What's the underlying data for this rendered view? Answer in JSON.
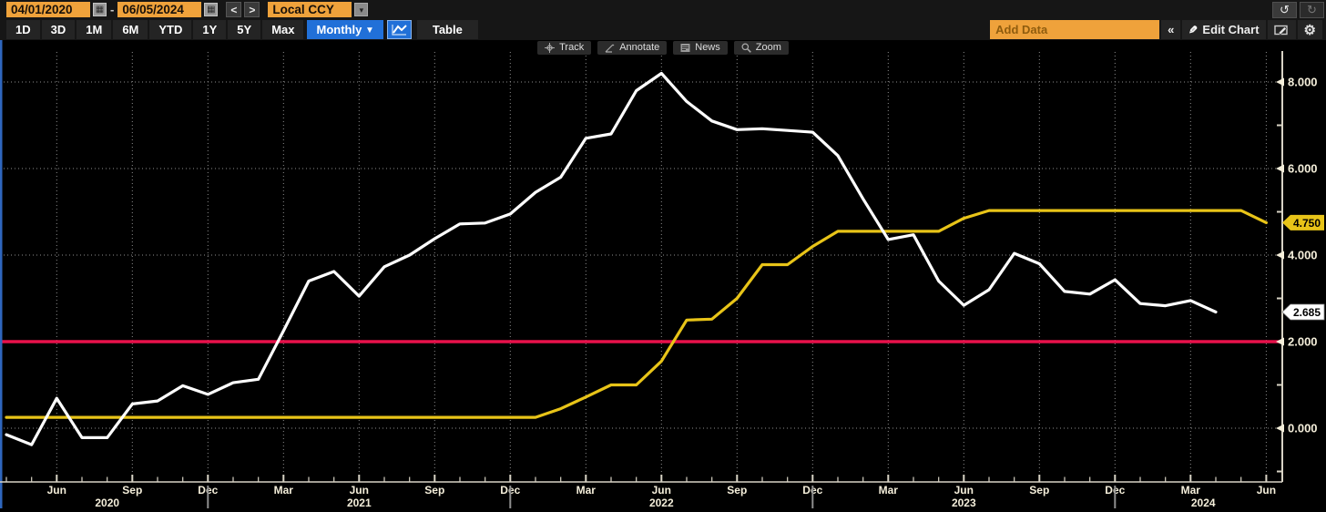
{
  "toolbar_row1": {
    "date_start": "04/01/2020",
    "date_separator": "-",
    "date_end": "06/05/2024",
    "calendar_icon": "▦",
    "prev_label": "<",
    "next_label": ">",
    "currency": "Local CCY",
    "dropdown_arrow": "▾",
    "undo_icon": "↺",
    "redo_icon": "↻"
  },
  "toolbar_row2": {
    "periods": [
      "1D",
      "3D",
      "1M",
      "6M",
      "YTD",
      "1Y",
      "5Y",
      "Max"
    ],
    "frequency_label": "Monthly",
    "frequency_arrow": "▼",
    "table_label": "Table",
    "add_data_placeholder": "Add Data",
    "collapse_icon": "«",
    "pencil_icon": "✎",
    "edit_chart_label": "Edit Chart",
    "gear_icon": "⚙",
    "selected_color": "#2170d8",
    "amber_color": "#efa23b"
  },
  "chart_toolbar": {
    "track_label": "Track",
    "annotate_label": "Annotate",
    "news_label": "News",
    "zoom_label": "Zoom"
  },
  "chart_data": {
    "type": "line",
    "frequency": "monthly",
    "months": [
      "Apr-20",
      "May-20",
      "Jun-20",
      "Jul-20",
      "Aug-20",
      "Sep-20",
      "Oct-20",
      "Nov-20",
      "Dec-20",
      "Jan-21",
      "Feb-21",
      "Mar-21",
      "Apr-21",
      "May-21",
      "Jun-21",
      "Jul-21",
      "Aug-21",
      "Sep-21",
      "Oct-21",
      "Nov-21",
      "Dec-21",
      "Jan-22",
      "Feb-22",
      "Mar-22",
      "Apr-22",
      "May-22",
      "Jun-22",
      "Jul-22",
      "Aug-22",
      "Sep-22",
      "Oct-22",
      "Nov-22",
      "Dec-22",
      "Jan-23",
      "Feb-23",
      "Mar-23",
      "Apr-23",
      "May-23",
      "Jun-23",
      "Jul-23",
      "Aug-23",
      "Sep-23",
      "Oct-23",
      "Nov-23",
      "Dec-23",
      "Jan-24",
      "Feb-24",
      "Mar-24",
      "Apr-24",
      "May-24",
      "Jun-24"
    ],
    "series": [
      {
        "name": "white-line",
        "color": "#ffffff",
        "last_value_label": "2.685",
        "values": [
          -0.15,
          -0.38,
          0.69,
          -0.22,
          -0.22,
          0.56,
          0.63,
          0.98,
          0.78,
          1.05,
          1.13,
          2.25,
          3.4,
          3.62,
          3.05,
          3.73,
          4.0,
          4.38,
          4.72,
          4.74,
          4.95,
          5.45,
          5.8,
          6.7,
          6.8,
          7.8,
          8.2,
          7.55,
          7.1,
          6.9,
          6.92,
          6.88,
          6.84,
          6.3,
          5.3,
          4.36,
          4.47,
          3.4,
          2.84,
          3.2,
          4.04,
          3.8,
          3.16,
          3.1,
          3.43,
          2.88,
          2.83,
          2.95,
          2.685,
          null,
          null
        ]
      },
      {
        "name": "yellow-line",
        "color": "#e8c418",
        "last_value_label": "4.750",
        "values": [
          0.25,
          0.25,
          0.25,
          0.25,
          0.25,
          0.25,
          0.25,
          0.25,
          0.25,
          0.25,
          0.25,
          0.25,
          0.25,
          0.25,
          0.25,
          0.25,
          0.25,
          0.25,
          0.25,
          0.25,
          0.25,
          0.25,
          0.45,
          0.72,
          1.0,
          1.0,
          1.55,
          2.5,
          2.52,
          3.0,
          3.78,
          3.78,
          4.2,
          4.55,
          4.55,
          4.55,
          4.55,
          4.55,
          4.85,
          5.03,
          5.03,
          5.03,
          5.03,
          5.03,
          5.03,
          5.03,
          5.03,
          5.03,
          5.03,
          5.03,
          4.75
        ]
      }
    ],
    "reference_line": {
      "name": "red-horizontal-line",
      "value": 2.0,
      "color": "#e8114b"
    },
    "y_axis": {
      "side": "right",
      "grid_values": [
        0,
        2,
        4,
        6,
        8
      ],
      "labeled_ticks": [
        {
          "value": 8,
          "label": "8.000"
        },
        {
          "value": 6,
          "label": "6.000"
        },
        {
          "value": 4,
          "label": "4.000"
        },
        {
          "value": 2,
          "label": "2.000"
        },
        {
          "value": 0,
          "label": "0.000"
        }
      ],
      "minor_ticks": [
        -1,
        1,
        3,
        5,
        7
      ]
    },
    "x_axis": {
      "label_months": [
        "Mar",
        "Jun",
        "Sep",
        "Dec"
      ],
      "years": [
        {
          "label": "2020",
          "index": 4
        },
        {
          "label": "2021",
          "index": 14
        },
        {
          "label": "2022",
          "index": 26
        },
        {
          "label": "2023",
          "index": 38
        },
        {
          "label": "2024",
          "index": 47.5
        }
      ],
      "year_separator_indices": [
        8,
        20,
        32,
        44
      ]
    },
    "colors": {
      "grid": "#8e8e8e",
      "axis": "#d8d3c5",
      "label": "#f4eeda",
      "plot_left_border": "#2f66bd",
      "year_separator": "#8f8f8f"
    }
  }
}
